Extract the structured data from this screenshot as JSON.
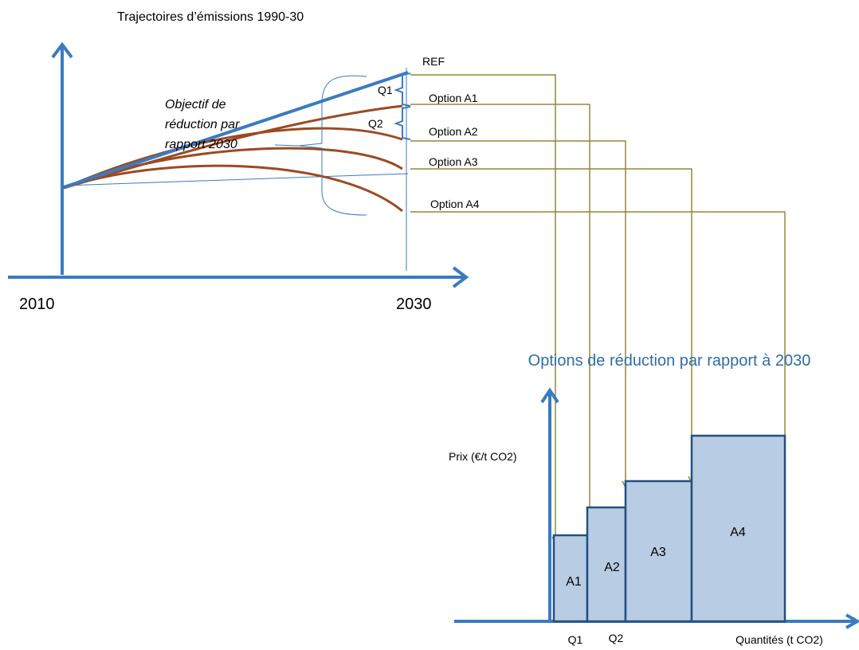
{
  "top_chart": {
    "title": "Trajectoires d’émissions 1990-30",
    "x_labels": [
      "2010",
      "2030"
    ],
    "ref_label": "REF",
    "gaps": [
      "Q1",
      "Q2"
    ],
    "options": [
      "Option A1",
      "Option A2",
      "Option A3",
      "Option A4"
    ],
    "annotation": [
      "Objectif de",
      "réduction par",
      "rapport  2030"
    ]
  },
  "bottom_chart": {
    "title": "Options de réduction par rapport à 2030",
    "y_label": "Prix (€/t CO2)",
    "blocks": [
      "A1",
      "A2",
      "A3",
      "A4"
    ],
    "x_labels": [
      "Q1",
      "Q2"
    ],
    "x_axis_label": "Quantités (t CO2)"
  }
}
